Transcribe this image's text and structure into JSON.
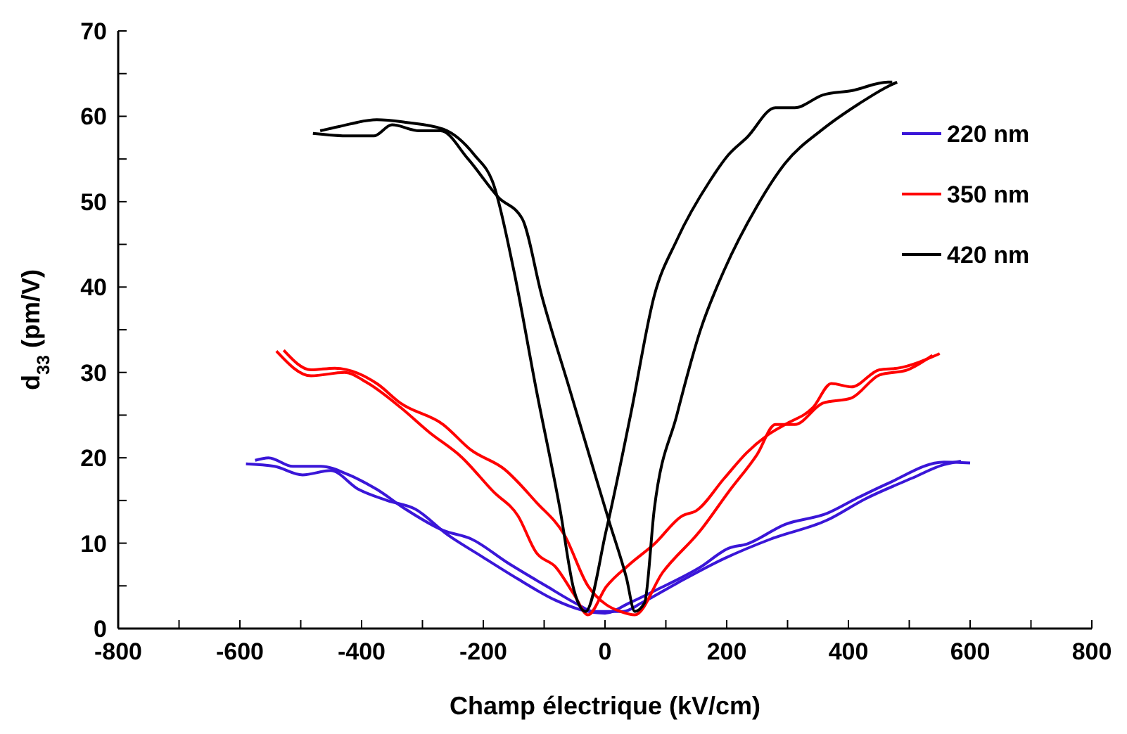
{
  "chart_data": {
    "type": "line",
    "xlabel": "Champ électrique (kV/cm)",
    "ylabel": "d$_{33}$ (pm/V)",
    "xlim": [
      -800,
      800
    ],
    "ylim": [
      0,
      70
    ],
    "xticks": [
      -800,
      {
        "value": -700,
        "label": null
      },
      -600,
      {
        "value": -500,
        "label": null
      },
      -400,
      {
        "value": -300,
        "label": null
      },
      -200,
      {
        "value": -100,
        "label": null
      },
      0,
      {
        "value": 100,
        "label": null
      },
      200,
      {
        "value": 300,
        "label": null
      },
      400,
      {
        "value": 500,
        "label": null
      },
      600,
      {
        "value": 700,
        "label": null
      },
      800
    ],
    "yticks": [
      0,
      {
        "value": 5,
        "label": null
      },
      10,
      {
        "value": 15,
        "label": null
      },
      20,
      {
        "value": 25,
        "label": null
      },
      30,
      {
        "value": 35,
        "label": null
      },
      40,
      {
        "value": 45,
        "label": null
      },
      50,
      {
        "value": 55,
        "label": null
      },
      60,
      {
        "value": 65,
        "label": null
      },
      70
    ],
    "grid": false,
    "legend": "top right",
    "marker": "none",
    "line_style": "solid",
    "series": [
      {
        "name": "220 nm",
        "color": "#3a16d8",
        "x": [
          -590,
          -543,
          -497,
          -451,
          -405,
          -358,
          -312,
          -259,
          -206,
          -143,
          -81,
          -40,
          0,
          40,
          81,
          157,
          203,
          233,
          296,
          365,
          412,
          465,
          557,
          600
        ],
        "values": [
          19.3,
          19,
          18,
          18.5,
          16.3,
          15,
          14,
          11,
          8.6,
          5.8,
          3.3,
          2.2,
          1.8,
          3,
          4.4,
          7.2,
          9.4,
          9.9,
          12.2,
          13.5,
          15.2,
          17,
          19.5,
          19.4
        ]
      },
      {
        "color": "#3a16d8",
        "x": [
          -575,
          -553,
          -513,
          -467,
          -421,
          -375,
          -328,
          -266,
          -220,
          -160,
          -97,
          -44,
          -20,
          30,
          60,
          118,
          196,
          273,
          365,
          428,
          504,
          557,
          585
        ],
        "values": [
          19.7,
          20,
          19,
          19,
          18,
          16.3,
          14,
          11.5,
          10.5,
          7.7,
          5,
          2.8,
          2,
          2,
          3,
          5.3,
          8.2,
          10.5,
          12.7,
          15.2,
          17.6,
          19.2,
          19.6
        ]
      },
      {
        "name": "350 nm",
        "color": "#ff0000",
        "x": [
          -540,
          -483,
          -428,
          -391,
          -336,
          -289,
          -236,
          -183,
          -143,
          -113,
          -81,
          -51,
          -28,
          2,
          40,
          81,
          127,
          150,
          196,
          233,
          266,
          296,
          342,
          372,
          405,
          451,
          481,
          550
        ],
        "values": [
          32.5,
          29.6,
          30,
          28.8,
          25.9,
          23,
          20.1,
          16,
          13.2,
          8.9,
          7.2,
          4,
          1.6,
          4.9,
          7.5,
          9.9,
          13.2,
          13.8,
          17.6,
          20.6,
          22.6,
          23.9,
          25.9,
          28.7,
          28.3,
          30.3,
          30.5,
          32.2
        ]
      },
      {
        "color": "#ff0000",
        "x": [
          -528,
          -483,
          -444,
          -375,
          -336,
          -266,
          -220,
          -166,
          -113,
          -67,
          -28,
          2,
          25,
          49,
          95,
          157,
          203,
          250,
          280,
          312,
          358,
          405,
          451,
          497,
          538
        ],
        "values": [
          32.6,
          30.3,
          30.5,
          28.7,
          26.4,
          23.9,
          20.9,
          18.7,
          14.8,
          11,
          5,
          2.8,
          2,
          1.6,
          6.6,
          11.5,
          16,
          20.4,
          23.9,
          23.9,
          26.4,
          27,
          29.7,
          30.3,
          32
        ]
      },
      {
        "name": "420 nm",
        "color": "#000000",
        "x": [
          -480,
          -420,
          -380,
          -350,
          -305,
          -270,
          -225,
          -175,
          -136,
          -104,
          -58,
          -12,
          7,
          35,
          49,
          65,
          81,
          118,
          157,
          196,
          250,
          296,
          358,
          418,
          465,
          480
        ],
        "values": [
          58,
          57.7,
          57.7,
          59,
          58.3,
          58.3,
          55,
          50.5,
          48,
          39,
          28,
          17,
          12.5,
          6,
          2,
          3,
          14,
          25,
          35,
          42,
          49.5,
          54.5,
          58.5,
          61.5,
          63.5,
          64
        ]
      },
      {
        "color": "#000000",
        "x": [
          -468,
          -437,
          -375,
          -328,
          -266,
          -215,
          -183,
          -150,
          -113,
          -74,
          -51,
          -32,
          2,
          42,
          81,
          118,
          173,
          203,
          233,
          280,
          312,
          358,
          405,
          465,
          472
        ],
        "values": [
          58.3,
          58.8,
          59.6,
          59.3,
          58.5,
          55.5,
          52,
          42,
          28,
          14,
          4.5,
          2,
          11.5,
          25,
          39,
          45.5,
          52.5,
          55.5,
          57.5,
          61,
          61,
          62.5,
          63,
          64,
          64
        ]
      }
    ]
  }
}
